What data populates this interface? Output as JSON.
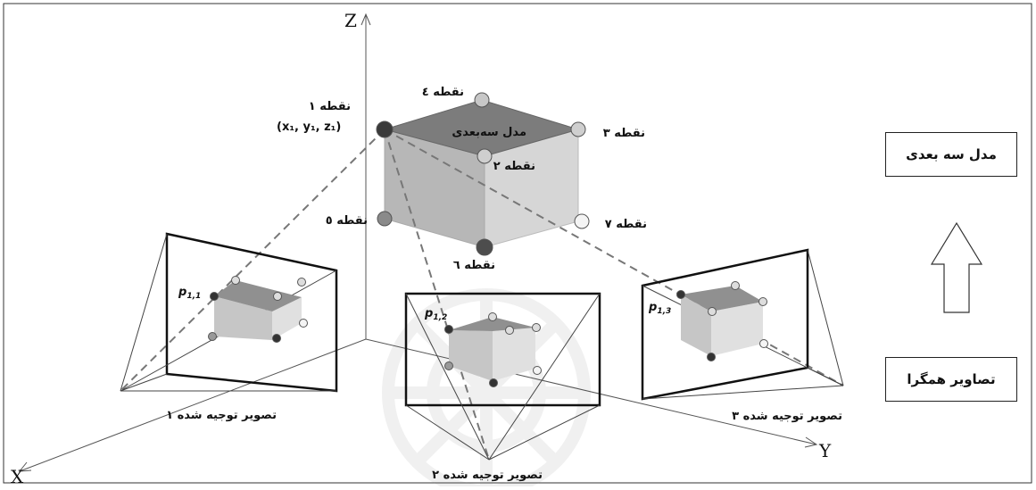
{
  "axes": {
    "x": "X",
    "y": "Y",
    "z": "Z"
  },
  "model": {
    "label": "مدل سه‌بعدی",
    "coords": "(x₁, y₁, z₁)",
    "points": {
      "p1": "نقطه ۱",
      "p2": "نقطه ۲",
      "p3": "نقطه ۳",
      "p4": "نقطه ٤",
      "p5": "نقطه ٥",
      "p6": "نقطه ٦",
      "p7": "نقطه ۷"
    }
  },
  "images": {
    "img1": {
      "caption": "تصویر توجیه شده ۱",
      "point": "p",
      "sub": "1,1"
    },
    "img2": {
      "caption": "تصویر توجیه شده ۲",
      "point": "p",
      "sub": "1,2"
    },
    "img3": {
      "caption": "تصویر توجیه شده ۳",
      "point": "p",
      "sub": "1,3"
    }
  },
  "side": {
    "top_label": "مدل سه بعدی",
    "bottom_label": "تصاویر همگرا"
  }
}
